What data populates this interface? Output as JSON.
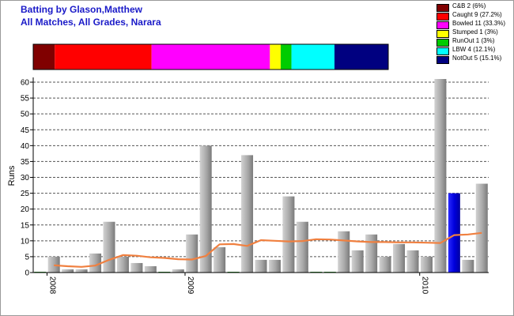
{
  "title_line1": "Batting by Glason,Matthew",
  "title_line2": "All Matches, All Grades, Narara",
  "chart_data": {
    "type": "bar",
    "ylabel": "Runs",
    "ylim": [
      0,
      61
    ],
    "yticks": [
      0,
      5,
      10,
      15,
      20,
      25,
      30,
      35,
      40,
      45,
      50,
      55,
      60
    ],
    "grid": true,
    "x_tick_labels": [
      "2008",
      "2009",
      "2010"
    ],
    "x_tick_after_bar": [
      0,
      10,
      27
    ],
    "bar_color": "#9a9a9a",
    "highlight_color": "#0000cc",
    "highlight_index": 30,
    "values": [
      0,
      5,
      1,
      1,
      6,
      16,
      5,
      3,
      2,
      0,
      1,
      12,
      40,
      8,
      0,
      37,
      4,
      4,
      24,
      16,
      0,
      0,
      13,
      7,
      12,
      5,
      9,
      7,
      5,
      61,
      25,
      4,
      28
    ],
    "moving_average": {
      "color": "#f08040",
      "values": [
        null,
        2.3,
        2.0,
        1.8,
        2.2,
        4.0,
        5.5,
        5.3,
        4.8,
        4.6,
        4.2,
        4.1,
        5.2,
        8.9,
        9.0,
        8.4,
        10.2,
        10.0,
        9.8,
        9.9,
        10.5,
        10.4,
        10.1,
        9.8,
        9.6,
        9.6,
        9.5,
        9.5,
        9.4,
        9.3,
        11.8,
        12.0,
        12.5
      ]
    },
    "dismissals": [
      {
        "label": "C&B 2 (6%)",
        "count": 2,
        "percent": 6,
        "color": "#800000"
      },
      {
        "label": "Caught 9 (27.2%)",
        "count": 9,
        "percent": 27.2,
        "color": "#ff0000"
      },
      {
        "label": "Bowled 11 (33.3%)",
        "count": 11,
        "percent": 33.3,
        "color": "#ff00ff"
      },
      {
        "label": "Stumped 1 (3%)",
        "count": 1,
        "percent": 3,
        "color": "#ffff00"
      },
      {
        "label": "RunOut 1 (3%)",
        "count": 1,
        "percent": 3,
        "color": "#00cc00"
      },
      {
        "label": "LBW 4 (12.1%)",
        "count": 4,
        "percent": 12.1,
        "color": "#00ffff"
      },
      {
        "label": "NotOut 5 (15.1%)",
        "count": 5,
        "percent": 15.1,
        "color": "#000080"
      }
    ]
  }
}
